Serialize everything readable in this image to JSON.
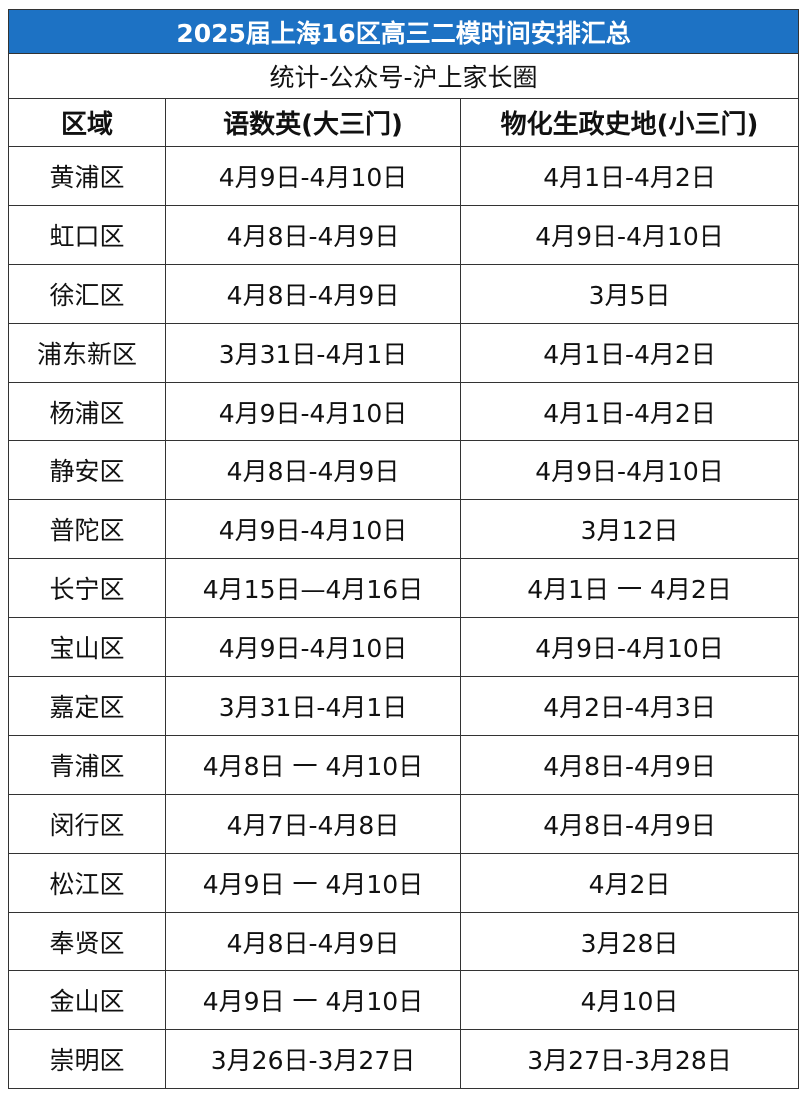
{
  "title": "2025届上海16区高三二模时间安排汇总",
  "subtitle": "统计-公众号-沪上家长圈",
  "header": {
    "district": "区域",
    "major": "语数英(大三门)",
    "minor": "物化生政史地(小三门)"
  },
  "rows": [
    {
      "district": "黄浦区",
      "major": "4月9日-4月10日",
      "minor": "4月1日-4月2日"
    },
    {
      "district": "虹口区",
      "major": "4月8日-4月9日",
      "minor": "4月9日-4月10日"
    },
    {
      "district": "徐汇区",
      "major": "4月8日-4月9日",
      "minor": "3月5日"
    },
    {
      "district": "浦东新区",
      "major": "3月31日-4月1日",
      "minor": "4月1日-4月2日"
    },
    {
      "district": "杨浦区",
      "major": "4月9日-4月10日",
      "minor": "4月1日-4月2日"
    },
    {
      "district": "静安区",
      "major": "4月8日-4月9日",
      "minor": "4月9日-4月10日"
    },
    {
      "district": "普陀区",
      "major": "4月9日-4月10日",
      "minor": "3月12日"
    },
    {
      "district": "长宁区",
      "major": "4月15日—4月16日",
      "minor": "4月1日 一 4月2日"
    },
    {
      "district": "宝山区",
      "major": "4月9日-4月10日",
      "minor": "4月9日-4月10日"
    },
    {
      "district": "嘉定区",
      "major": "3月31日-4月1日",
      "minor": "4月2日-4月3日"
    },
    {
      "district": "青浦区",
      "major": "4月8日 一 4月10日",
      "minor": "4月8日-4月9日"
    },
    {
      "district": "闵行区",
      "major": "4月7日-4月8日",
      "minor": "4月8日-4月9日"
    },
    {
      "district": "松江区",
      "major": "4月9日 一 4月10日",
      "minor": "4月2日"
    },
    {
      "district": "奉贤区",
      "major": "4月8日-4月9日",
      "minor": "3月28日"
    },
    {
      "district": "金山区",
      "major": "4月9日 一 4月10日",
      "minor": "4月10日"
    },
    {
      "district": "崇明区",
      "major": "3月26日-3月27日",
      "minor": "3月27日-3月28日"
    }
  ],
  "colors": {
    "title_bg": "#1d72c4"
  }
}
